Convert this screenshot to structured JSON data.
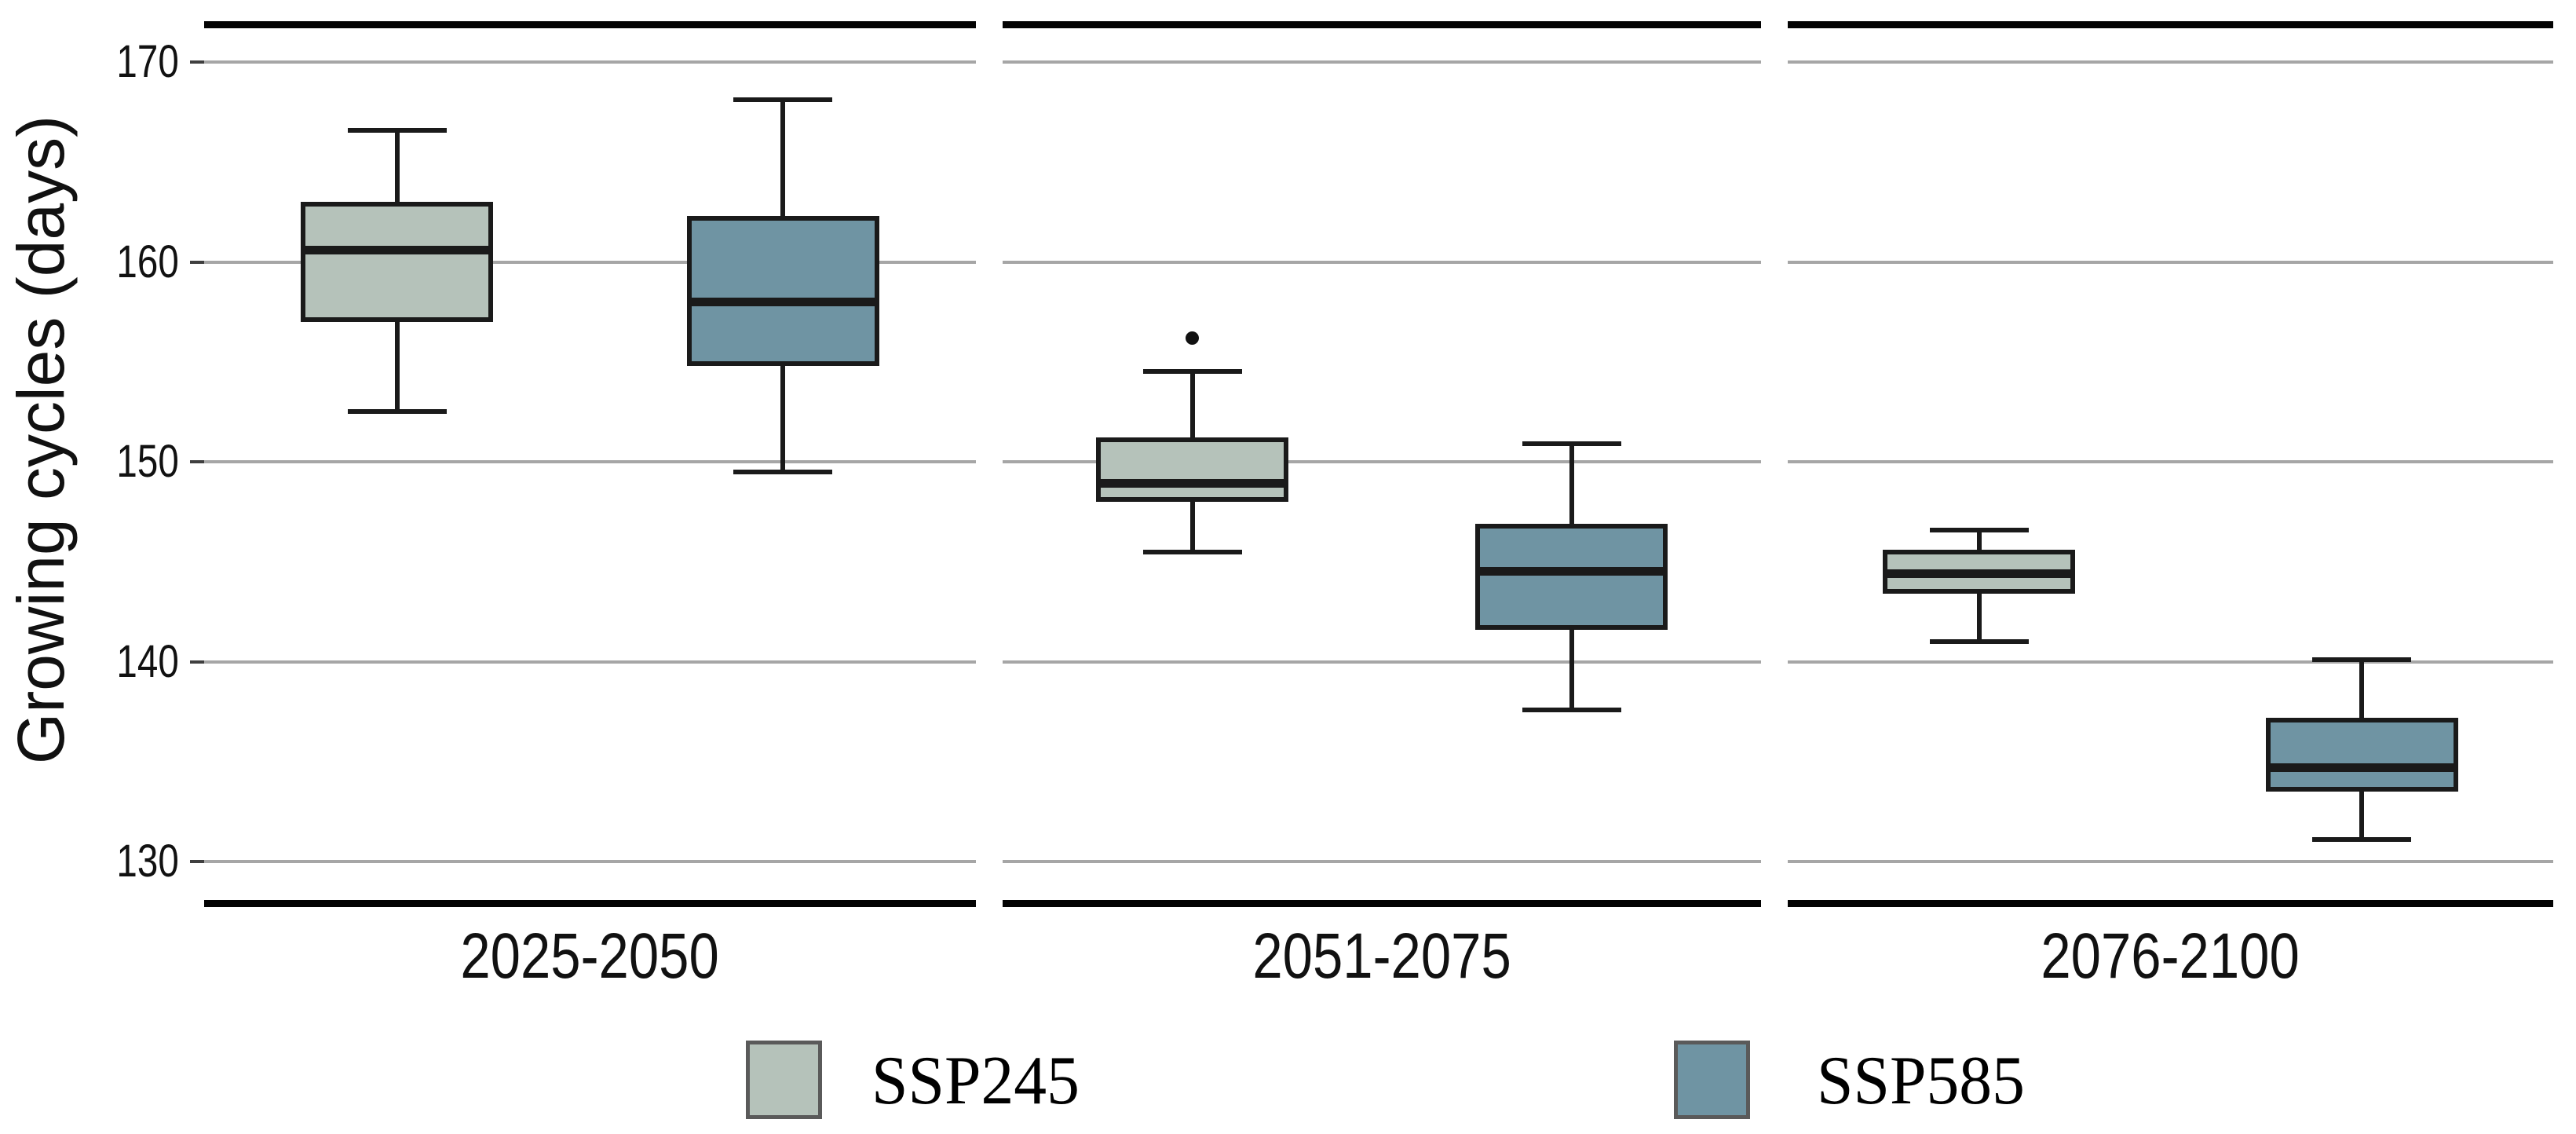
{
  "chart_data": {
    "type": "boxplot",
    "title": "",
    "ylabel": "Growing cycles (days)",
    "xlabel": "",
    "categories": [
      "2025-2050",
      "2051-2075",
      "2076-2100"
    ],
    "yticks": [
      170,
      160,
      150,
      140,
      130
    ],
    "ylim": [
      127.5,
      172.0
    ],
    "grid": true,
    "legend_position": "bottom",
    "style": {
      "grid_color": "#a6a6a6",
      "axis_line_color": "#030303",
      "box_border_color": "#1a1a1a",
      "tick_mark_color": "#3f3f3f",
      "legend_swatch_border": "#5a5a5a",
      "background": "#ffffff"
    },
    "series": [
      {
        "name": "SSP245",
        "color": "#b5c2ba",
        "boxes": [
          {
            "category": "2025-2050",
            "whisker_low": 152.5,
            "q1": 157.0,
            "median": 160.6,
            "q3": 163.0,
            "whisker_high": 166.6,
            "outliers": []
          },
          {
            "category": "2051-2075",
            "whisker_low": 145.5,
            "q1": 148.0,
            "median": 148.9,
            "q3": 151.2,
            "whisker_high": 154.5,
            "outliers": [
              156.2
            ]
          },
          {
            "category": "2076-2100",
            "whisker_low": 141.0,
            "q1": 143.4,
            "median": 144.4,
            "q3": 145.6,
            "whisker_high": 146.6,
            "outliers": []
          }
        ]
      },
      {
        "name": "SSP585",
        "color": "#6f94a3",
        "boxes": [
          {
            "category": "2025-2050",
            "whisker_low": 149.5,
            "q1": 154.8,
            "median": 158.0,
            "q3": 162.3,
            "whisker_high": 168.1,
            "outliers": []
          },
          {
            "category": "2051-2075",
            "whisker_low": 137.6,
            "q1": 141.6,
            "median": 144.5,
            "q3": 146.9,
            "whisker_high": 150.9,
            "outliers": []
          },
          {
            "category": "2076-2100",
            "whisker_low": 131.1,
            "q1": 133.5,
            "median": 134.7,
            "q3": 137.2,
            "whisker_high": 140.1,
            "outliers": []
          }
        ]
      }
    ]
  }
}
